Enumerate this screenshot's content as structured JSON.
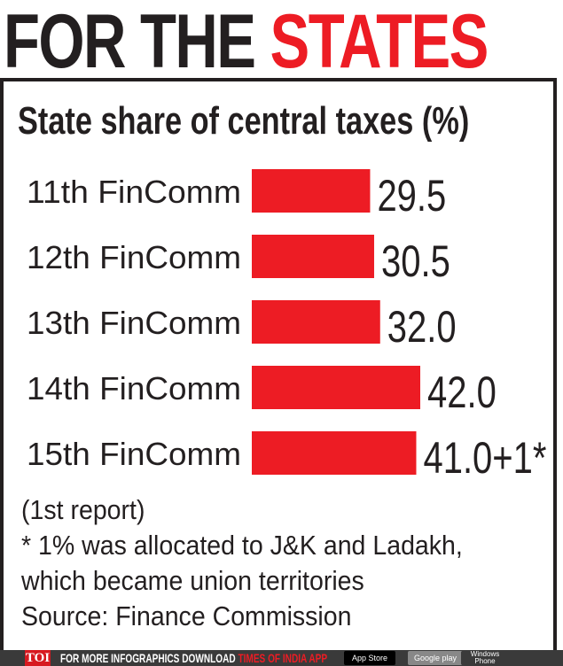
{
  "header": {
    "title_part1": "FOR THE ",
    "title_part2": "STATES"
  },
  "chart_data": {
    "type": "bar",
    "orientation": "horizontal",
    "title": "State share of central taxes (%)",
    "categories": [
      "11th FinComm",
      "12th FinComm",
      "13th FinComm",
      "14th FinComm",
      "15th FinComm"
    ],
    "values": [
      29.5,
      30.5,
      32.0,
      42.0,
      41.0
    ],
    "data_labels": [
      "29.5",
      "30.5",
      "32.0",
      "42.0",
      "41.0+1*"
    ],
    "bar_color": "#ed1c24",
    "xlim": [
      0,
      42
    ]
  },
  "notes": [
    "(1st report)",
    "* 1% was allocated to J&K and Ladakh,",
    "which became union territories",
    "Source: Finance Commission"
  ],
  "footer": {
    "logo": "TOI",
    "text": "FOR MORE  INFOGRAPHICS DOWNLOAD ",
    "app": "TIMES OF INDIA  APP",
    "app_store": "App Store",
    "google_play": "Google play",
    "windows": "Windows Phone"
  }
}
